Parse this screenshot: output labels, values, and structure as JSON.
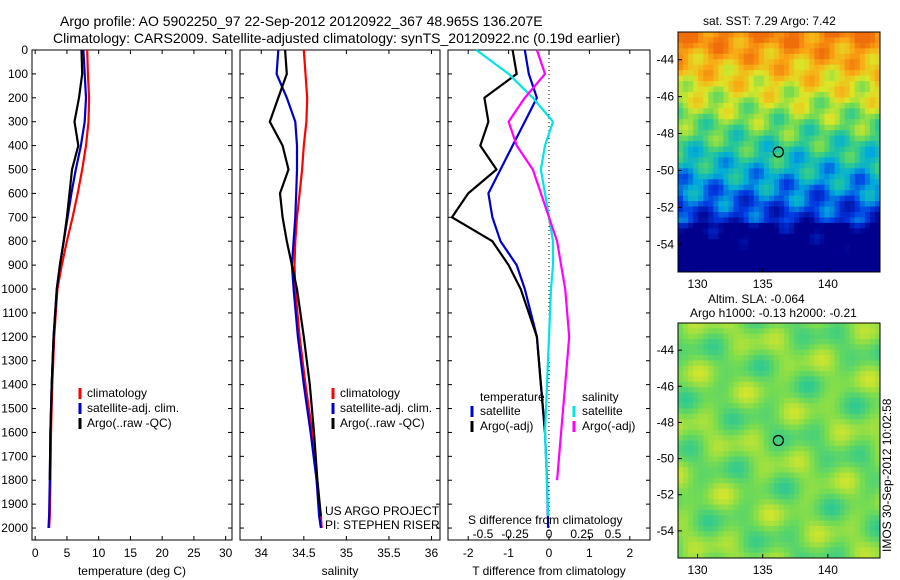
{
  "header": {
    "line1": "Argo profile: AO 5902250_97 22-Sep-2012 20120922_367 48.965S 136.207E",
    "line2": "Climatology: CARS2009. Satellite-adjusted climatology: synTS_20120922.nc (0.19d earlier)"
  },
  "credits": {
    "project": "US ARGO PROJECT",
    "pi": "PI: STEPHEN RISER"
  },
  "stamp": "IMOS 30-Sep-2012 10:02:58",
  "colors": {
    "black": "#000000",
    "red": "#ff0000",
    "blue": "#0000cc",
    "cyan": "#00e5e5",
    "magenta": "#ff00ff"
  },
  "chart_data": [
    {
      "type": "line",
      "xlabel": "temperature (deg C)",
      "ylabel": "",
      "xlim": [
        -0.5,
        31
      ],
      "ylim": [
        0,
        2050
      ],
      "y_reversed": true,
      "x_ticks": [
        0,
        5,
        10,
        15,
        20,
        25,
        30
      ],
      "y_ticks": [
        0,
        100,
        200,
        300,
        400,
        500,
        600,
        700,
        800,
        900,
        1000,
        1100,
        1200,
        1300,
        1400,
        1500,
        1600,
        1700,
        1800,
        1900,
        2000
      ],
      "legend": [
        "climatology",
        "satellite-adj. clim.",
        "Argo(..raw -QC)"
      ],
      "series": [
        {
          "name": "climatology",
          "color": "red",
          "x": [
            8.2,
            8.3,
            8.5,
            8.4,
            8.0,
            7.4,
            6.7,
            5.9,
            5.0,
            4.2,
            3.5,
            3.0,
            2.7,
            2.5,
            2.4,
            2.3,
            2.2
          ],
          "y": [
            0,
            100,
            200,
            300,
            400,
            500,
            600,
            700,
            800,
            900,
            1000,
            1200,
            1400,
            1600,
            1800,
            1950,
            2000
          ]
        },
        {
          "name": "satellite-adj. clim.",
          "color": "blue",
          "x": [
            7.6,
            7.8,
            8.0,
            7.8,
            7.2,
            6.4,
            5.7,
            5.1,
            4.5,
            3.9,
            3.4,
            2.9,
            2.6,
            2.4,
            2.3,
            2.2,
            2.1
          ],
          "y": [
            0,
            100,
            200,
            300,
            400,
            500,
            600,
            700,
            800,
            900,
            1000,
            1200,
            1400,
            1600,
            1800,
            1950,
            2000
          ]
        },
        {
          "name": "Argo(..raw -QC)",
          "color": "black",
          "x": [
            7.3,
            7.4,
            6.9,
            6.2,
            6.8,
            5.8,
            5.4,
            5.0,
            4.5,
            3.9,
            3.4,
            2.9,
            2.6,
            2.4,
            2.3
          ],
          "y": [
            0,
            100,
            200,
            300,
            400,
            500,
            600,
            700,
            800,
            900,
            1000,
            1200,
            1400,
            1600,
            1800
          ]
        }
      ]
    },
    {
      "type": "line",
      "xlabel": "salinity",
      "ylabel": "",
      "xlim": [
        33.75,
        36.1
      ],
      "ylim": [
        0,
        2050
      ],
      "y_reversed": true,
      "x_ticks": [
        34,
        34.5,
        35,
        35.5,
        36
      ],
      "legend": [
        "climatology",
        "satellite-adj. clim.",
        "Argo(..raw -QC)"
      ],
      "series": [
        {
          "name": "climatology",
          "color": "red",
          "x": [
            34.5,
            34.52,
            34.54,
            34.53,
            34.5,
            34.48,
            34.45,
            34.42,
            34.4,
            34.39,
            34.4,
            34.45,
            34.52,
            34.6,
            34.65,
            34.7,
            34.71
          ],
          "y": [
            0,
            100,
            200,
            300,
            400,
            500,
            600,
            700,
            800,
            900,
            1000,
            1200,
            1400,
            1600,
            1800,
            1950,
            2000
          ]
        },
        {
          "name": "satellite-adj. clim.",
          "color": "blue",
          "x": [
            34.2,
            34.18,
            34.3,
            34.4,
            34.42,
            34.42,
            34.41,
            34.4,
            34.38,
            34.36,
            34.38,
            34.43,
            34.5,
            34.58,
            34.65,
            34.68,
            34.7
          ],
          "y": [
            0,
            100,
            200,
            300,
            400,
            500,
            600,
            700,
            800,
            900,
            1000,
            1200,
            1400,
            1600,
            1800,
            1950,
            2000
          ]
        },
        {
          "name": "Argo(..raw -QC)",
          "color": "black",
          "x": [
            34.28,
            34.3,
            34.2,
            34.1,
            34.25,
            34.32,
            34.22,
            34.25,
            34.3,
            34.36,
            34.42,
            34.5,
            34.57,
            34.62,
            34.66,
            34.7
          ],
          "y": [
            0,
            100,
            200,
            300,
            400,
            500,
            600,
            700,
            800,
            900,
            1000,
            1200,
            1400,
            1600,
            1800,
            1950
          ]
        }
      ]
    },
    {
      "type": "line",
      "xlabel": "T difference from climatology",
      "ylabel": "",
      "xlim": [
        -2.5,
        2.5
      ],
      "ylim": [
        0,
        2050
      ],
      "y_reversed": true,
      "x_ticks": [
        -2,
        -1,
        0,
        1,
        2
      ],
      "top_axis_label": "S difference from climatology",
      "top_axis_ticks": [
        "-0.5",
        "-0.25",
        "0",
        "0.25",
        "0.5"
      ],
      "legend_left_title": "temperature",
      "legend_right_title": "salinity",
      "legend": [
        "satellite",
        "Argo(-adj)",
        "satellite",
        "Argo(-adj)"
      ],
      "series": [
        {
          "name": "satellite",
          "quantity": "temperature",
          "color": "blue",
          "x": [
            -0.6,
            -0.5,
            -0.3,
            -0.6,
            -0.9,
            -1.2,
            -1.5,
            -1.4,
            -1.2,
            -0.8,
            -0.6,
            -0.3,
            -0.2,
            -0.1,
            -0.05,
            -0.02
          ],
          "y": [
            0,
            100,
            200,
            300,
            400,
            500,
            600,
            700,
            800,
            900,
            1000,
            1200,
            1400,
            1600,
            1800,
            2000
          ]
        },
        {
          "name": "Argo(-adj)",
          "quantity": "temperature",
          "color": "black",
          "x": [
            -0.9,
            -0.8,
            -1.6,
            -1.5,
            -1.7,
            -1.3,
            -2.0,
            -2.4,
            -1.4,
            -1.0,
            -0.7,
            -0.3,
            -0.2,
            -0.1
          ],
          "y": [
            0,
            100,
            200,
            300,
            400,
            500,
            600,
            700,
            800,
            900,
            1000,
            1200,
            1400,
            1600
          ]
        },
        {
          "name": "satellite",
          "quantity": "salinity",
          "color": "cyan",
          "x": [
            -1.8,
            -1.0,
            -0.4,
            0.1,
            -0.1,
            -0.2,
            -0.1,
            0.0,
            0.1,
            0.1,
            0.05,
            0.0,
            -0.05,
            -0.1,
            -0.02
          ],
          "y": [
            0,
            100,
            200,
            300,
            400,
            500,
            600,
            700,
            800,
            900,
            1000,
            1200,
            1400,
            1600,
            1950
          ]
        },
        {
          "name": "Argo(-adj)",
          "quantity": "salinity",
          "color": "magenta",
          "x": [
            -0.3,
            -0.1,
            -0.6,
            -1.0,
            -0.8,
            -0.4,
            -0.2,
            0.0,
            0.2,
            0.3,
            0.4,
            0.5,
            0.4,
            0.3,
            0.2
          ],
          "y": [
            0,
            100,
            200,
            300,
            400,
            500,
            600,
            700,
            800,
            900,
            1000,
            1200,
            1400,
            1600,
            1800
          ]
        }
      ]
    },
    {
      "type": "heatmap",
      "title": "sat. SST: 7.29 Argo: 7.42",
      "xlim": [
        128.5,
        144
      ],
      "ylim": [
        -55.5,
        -42.5
      ],
      "x_ticks": [
        130,
        135,
        140
      ],
      "y_ticks": [
        -44,
        -46,
        -48,
        -50,
        -52,
        -54
      ],
      "marker": {
        "lon": 136.2,
        "lat": -49.0
      }
    },
    {
      "type": "heatmap",
      "title": "Altim. SLA: -0.064",
      "subtitle": "Argo h1000: -0.13 h2000: -0.21",
      "xlim": [
        128.5,
        144
      ],
      "ylim": [
        -55.5,
        -42.5
      ],
      "x_ticks": [
        130,
        135,
        140
      ],
      "y_ticks": [
        -44,
        -46,
        -48,
        -50,
        -52,
        -54
      ],
      "marker": {
        "lon": 136.2,
        "lat": -49.0
      }
    }
  ]
}
